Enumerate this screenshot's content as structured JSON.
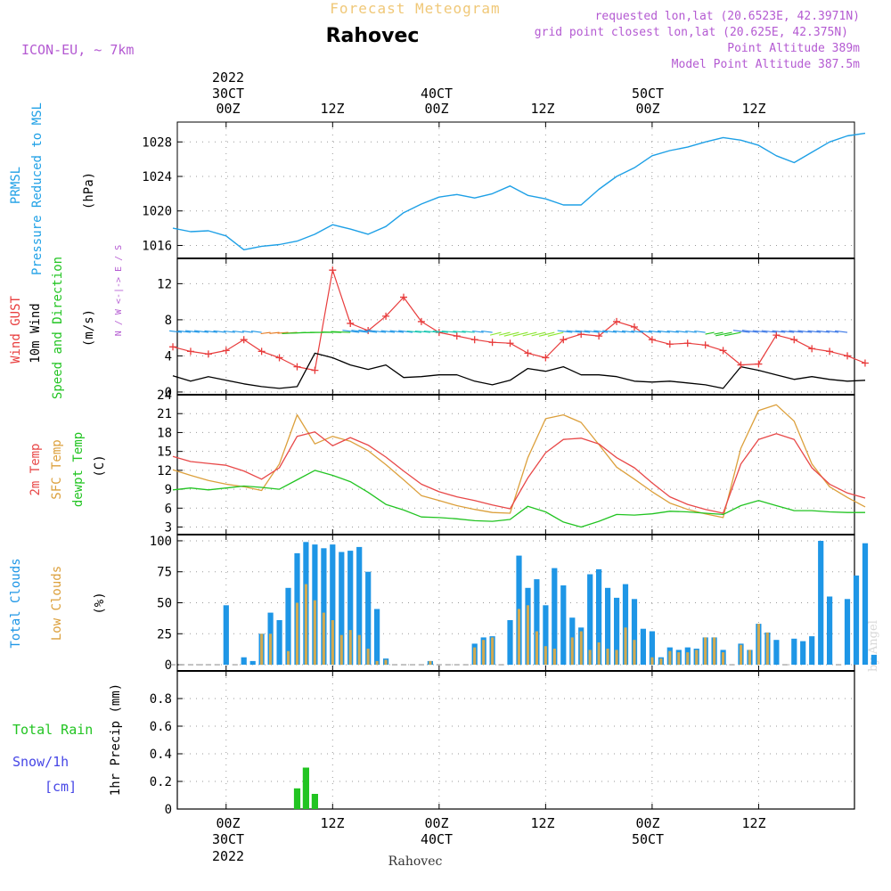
{
  "header": {
    "subtitle": "Forecast Meteogram",
    "location": "Rahovec",
    "model": "ICON-EU, ~ 7km",
    "requested": "requested lon,lat (20.6523E, 42.3971N)",
    "grid": "grid point closest lon,lat (20.625E, 42.375N)",
    "point_alt": "Point Altitude 389m",
    "model_alt": "Model Point Altitude 387.5m",
    "credit": "by Angel",
    "footer": "Rahovec"
  },
  "colors": {
    "pressure": "#1ea0e6",
    "gust": "#e83c3c",
    "wind": "#000000",
    "temp": "#e84848",
    "sfc": "#dca03c",
    "dewpt": "#22c422",
    "total_cloud": "#1e96e6",
    "low_cloud": "#d2aa50",
    "rain": "#22c422",
    "snow": "#4646e6",
    "purple": "#b45ad2"
  },
  "chart_data": [
    {
      "id": "pressure",
      "type": "line",
      "ylabel": [
        "PRMSL",
        "Pressure Reduced to MSL"
      ],
      "unit": "(hPa)",
      "ylim": [
        1014.5,
        1030.3
      ],
      "yticks": [
        "1016",
        "1020",
        "1024",
        "1028"
      ],
      "tick_values": [
        1016,
        1020,
        1024,
        1028
      ],
      "x_hours": [
        -6,
        -4,
        -2,
        0,
        2,
        4,
        6,
        8,
        10,
        12,
        14,
        16,
        18,
        20,
        22,
        24,
        26,
        28,
        30,
        32,
        34,
        36,
        38,
        40,
        42,
        44,
        46,
        48,
        50,
        52,
        54,
        56,
        58,
        60,
        62,
        64,
        66,
        68,
        70,
        72
      ],
      "values": [
        1018.0,
        1017.6,
        1017.7,
        1017.1,
        1015.5,
        1015.9,
        1016.1,
        1016.5,
        1017.3,
        1018.4,
        1017.9,
        1017.3,
        1018.2,
        1019.8,
        1020.8,
        1021.6,
        1021.9,
        1021.5,
        1022.0,
        1022.9,
        1021.8,
        1021.4,
        1020.7,
        1020.7,
        1022.5,
        1024.0,
        1025.0,
        1026.4,
        1027.0,
        1027.4,
        1028.0,
        1028.5,
        1028.2,
        1027.6,
        1026.4,
        1025.6,
        1026.8,
        1028.0,
        1028.7,
        1029.0
      ]
    },
    {
      "id": "wind",
      "type": "line",
      "ylabel": [
        "Wind GUST",
        "10m Wind",
        "Speed and Direction"
      ],
      "unit": "(m/s)",
      "compass": "N / W <-|-> E / S",
      "ylim": [
        -0.3,
        14.8
      ],
      "yticks": [
        "0",
        "4",
        "8",
        "12"
      ],
      "tick_values": [
        0,
        4,
        8,
        12
      ],
      "x_hours": [
        -6,
        -4,
        -2,
        0,
        2,
        4,
        6,
        8,
        10,
        12,
        14,
        16,
        18,
        20,
        22,
        24,
        26,
        28,
        30,
        32,
        34,
        36,
        38,
        40,
        42,
        44,
        46,
        48,
        50,
        52,
        54,
        56,
        58,
        60,
        62,
        64,
        66,
        68,
        70,
        72
      ],
      "gust": [
        5.0,
        4.5,
        4.2,
        4.6,
        5.8,
        4.5,
        3.8,
        2.8,
        2.4,
        13.5,
        7.6,
        6.8,
        8.4,
        10.5,
        7.8,
        6.6,
        6.2,
        5.8,
        5.5,
        5.4,
        4.3,
        3.8,
        5.8,
        6.4,
        6.2,
        7.8,
        7.2,
        5.8,
        5.3,
        5.4,
        5.2,
        4.6,
        3.0,
        3.1,
        6.3,
        5.8,
        4.8,
        4.5,
        4.0,
        3.2
      ],
      "speed": [
        1.8,
        1.2,
        1.7,
        1.3,
        0.9,
        0.6,
        0.4,
        0.6,
        4.3,
        3.8,
        3.0,
        2.5,
        3.0,
        1.6,
        1.7,
        1.9,
        1.9,
        1.2,
        0.8,
        1.3,
        2.6,
        2.3,
        2.8,
        1.9,
        1.9,
        1.7,
        1.2,
        1.1,
        1.2,
        1.0,
        0.8,
        0.4,
        2.8,
        2.4,
        1.9,
        1.4,
        1.7,
        1.4,
        1.2,
        1.3
      ]
    },
    {
      "id": "temperature",
      "type": "line",
      "ylabel": [
        "2m Temp",
        "SFC Temp",
        "dewpt Temp"
      ],
      "unit": "(C)",
      "ylim": [
        1.8,
        24.0
      ],
      "yticks": [
        "3",
        "6",
        "9",
        "12",
        "15",
        "18",
        "21",
        "24"
      ],
      "tick_values": [
        3,
        6,
        9,
        12,
        15,
        18,
        21,
        24
      ],
      "x_hours": [
        -6,
        -4,
        -2,
        0,
        2,
        4,
        6,
        8,
        10,
        12,
        14,
        16,
        18,
        20,
        22,
        24,
        26,
        28,
        30,
        32,
        34,
        36,
        38,
        40,
        42,
        44,
        46,
        48,
        50,
        52,
        54,
        56,
        58,
        60,
        62,
        64,
        66,
        68,
        70,
        72
      ],
      "temp2m": [
        14.2,
        13.4,
        13.1,
        12.8,
        11.9,
        10.6,
        12.4,
        17.4,
        18.1,
        15.9,
        17.2,
        16.0,
        14.1,
        11.9,
        9.8,
        8.6,
        7.8,
        7.2,
        6.5,
        5.9,
        10.8,
        14.8,
        16.9,
        17.1,
        16.2,
        14.0,
        12.4,
        10.0,
        7.8,
        6.6,
        5.8,
        5.2,
        13.0,
        16.9,
        17.8,
        16.9,
        12.4,
        9.8,
        8.4,
        7.6
      ],
      "sfc": [
        12.1,
        11.2,
        10.4,
        9.8,
        9.4,
        8.8,
        13.0,
        20.8,
        16.2,
        17.4,
        16.6,
        15.1,
        12.9,
        10.5,
        8.0,
        7.2,
        6.4,
        5.8,
        5.3,
        5.2,
        14.0,
        20.2,
        20.8,
        19.6,
        16.1,
        12.5,
        10.6,
        8.6,
        6.8,
        5.8,
        5.1,
        4.5,
        15.5,
        21.5,
        22.4,
        19.8,
        13.0,
        9.4,
        7.7,
        6.2
      ],
      "dewpt": [
        8.9,
        9.2,
        8.9,
        9.2,
        9.5,
        9.3,
        9.0,
        10.5,
        12.0,
        11.2,
        10.2,
        8.5,
        6.6,
        5.7,
        4.6,
        4.5,
        4.3,
        4.0,
        3.9,
        4.2,
        6.3,
        5.4,
        3.8,
        3.0,
        3.9,
        5.0,
        4.9,
        5.1,
        5.5,
        5.4,
        5.2,
        5.0,
        6.4,
        7.2,
        6.4,
        5.6,
        5.6,
        5.4,
        5.3,
        5.3
      ]
    },
    {
      "id": "clouds",
      "type": "bar",
      "ylabel": [
        "Total Clouds",
        "Low Clouds"
      ],
      "unit": "(%)",
      "ylim": [
        -5,
        105
      ],
      "yticks": [
        "0",
        "25",
        "50",
        "75",
        "100"
      ],
      "tick_values": [
        0,
        25,
        50,
        75,
        100
      ],
      "x_hours": [
        -6,
        -5,
        -4,
        -3,
        -2,
        -1,
        0,
        1,
        2,
        3,
        4,
        5,
        6,
        7,
        8,
        9,
        10,
        11,
        12,
        13,
        14,
        15,
        16,
        17,
        18,
        19,
        20,
        21,
        22,
        23,
        24,
        25,
        26,
        27,
        28,
        29,
        30,
        31,
        32,
        33,
        34,
        35,
        36,
        37,
        38,
        39,
        40,
        41,
        42,
        43,
        44,
        45,
        46,
        47,
        48,
        49,
        50,
        51,
        52,
        53,
        54,
        55,
        56,
        57,
        58,
        59,
        60,
        61,
        62,
        63,
        64,
        65,
        66,
        67,
        68,
        69,
        70,
        71,
        72,
        73
      ],
      "total": [
        0,
        0,
        0,
        0,
        0,
        0,
        48,
        0,
        6,
        3,
        25,
        42,
        36,
        62,
        90,
        99,
        97,
        94,
        97,
        91,
        92,
        95,
        75,
        45,
        5,
        0,
        0,
        0,
        0,
        3,
        0,
        0,
        0,
        0,
        17,
        22,
        23,
        0,
        36,
        88,
        62,
        69,
        48,
        78,
        64,
        38,
        30,
        73,
        77,
        62,
        54,
        65,
        53,
        29,
        27,
        6,
        14,
        12,
        14,
        13,
        22,
        22,
        12,
        0,
        17,
        12,
        33,
        26,
        20,
        0,
        21,
        19,
        23,
        100,
        55,
        0,
        53,
        72,
        98,
        8
      ],
      "low": [
        0,
        0,
        0,
        0,
        0,
        0,
        0,
        0,
        0,
        0,
        25,
        25,
        0,
        11,
        50,
        65,
        52,
        42,
        36,
        24,
        28,
        24,
        13,
        3,
        4,
        0,
        0,
        0,
        0,
        3,
        0,
        0,
        0,
        0,
        14,
        20,
        22,
        0,
        0,
        45,
        48,
        27,
        15,
        13,
        0,
        22,
        27,
        12,
        18,
        13,
        12,
        30,
        20,
        0,
        6,
        5,
        11,
        10,
        10,
        12,
        22,
        22,
        10,
        0,
        16,
        12,
        33,
        26,
        0,
        0,
        0,
        0,
        0,
        0,
        0,
        0,
        0,
        0,
        0,
        0
      ]
    },
    {
      "id": "precip",
      "type": "bar",
      "ylabel": [
        "Total Rain",
        "Snow/1h",
        "[cm]"
      ],
      "unit": "1hr Precip (mm)",
      "ylim": [
        0,
        1.0
      ],
      "yticks": [
        "0",
        "0.2",
        "0.4",
        "0.6",
        "0.8"
      ],
      "tick_values": [
        0,
        0.2,
        0.4,
        0.6,
        0.8
      ],
      "x_hours": [
        8,
        9,
        10
      ],
      "rain": [
        0.15,
        0.3,
        0.11
      ]
    }
  ],
  "axis": {
    "top_ticks": [
      "00Z",
      "12Z",
      "00Z",
      "12Z",
      "00Z",
      "12Z"
    ],
    "top_dates": [
      "2022 30CT",
      "",
      "40CT",
      "",
      "50CT",
      ""
    ],
    "bottom_ticks": [
      "00Z",
      "12Z",
      "00Z",
      "12Z",
      "00Z",
      "12Z"
    ],
    "bottom_dates": [
      "30CT 2022",
      "",
      "40CT",
      "",
      "50CT",
      ""
    ],
    "tick_hours": [
      0,
      12,
      24,
      36,
      48,
      60
    ],
    "range_hours": [
      -5.5,
      70.8
    ]
  }
}
